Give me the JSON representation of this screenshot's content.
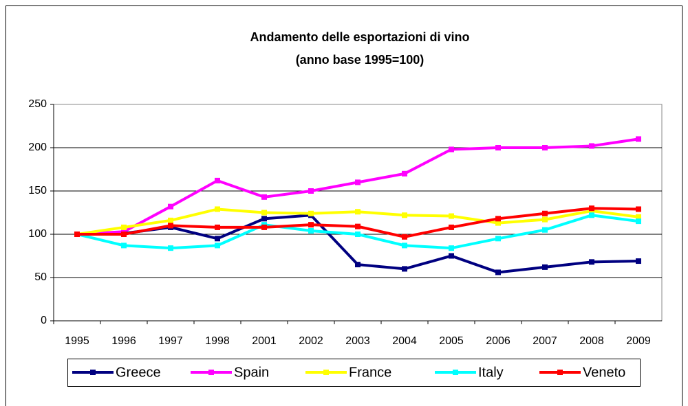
{
  "chart_data": {
    "type": "line",
    "title": "Andamento delle esportazioni di vino",
    "subtitle": "(anno base 1995=100)",
    "categories": [
      "1995",
      "1996",
      "1997",
      "1998",
      "2001",
      "2002",
      "2003",
      "2004",
      "2005",
      "2006",
      "2007",
      "2008",
      "2009"
    ],
    "series": [
      {
        "name": "Greece",
        "color": "#000080",
        "values": [
          100,
          101,
          108,
          95,
          118,
          122,
          65,
          60,
          75,
          56,
          62,
          68,
          69
        ]
      },
      {
        "name": "Spain",
        "color": "#ff00ff",
        "values": [
          100,
          103,
          132,
          162,
          143,
          150,
          160,
          170,
          198,
          200,
          200,
          202,
          210
        ]
      },
      {
        "name": "France",
        "color": "#ffff00",
        "values": [
          100,
          108,
          116,
          129,
          125,
          124,
          126,
          122,
          121,
          113,
          117,
          127,
          120
        ]
      },
      {
        "name": "Italy",
        "color": "#00ffff",
        "values": [
          100,
          87,
          84,
          87,
          111,
          104,
          100,
          87,
          84,
          95,
          105,
          122,
          115
        ]
      },
      {
        "name": "Veneto",
        "color": "#ff0000",
        "values": [
          100,
          100,
          110,
          108,
          108,
          111,
          109,
          97,
          108,
          118,
          124,
          130,
          129
        ]
      }
    ],
    "ylim": [
      0,
      250
    ],
    "yticks": [
      0,
      50,
      100,
      150,
      200,
      250
    ],
    "grid": true,
    "legend": "bottom"
  }
}
